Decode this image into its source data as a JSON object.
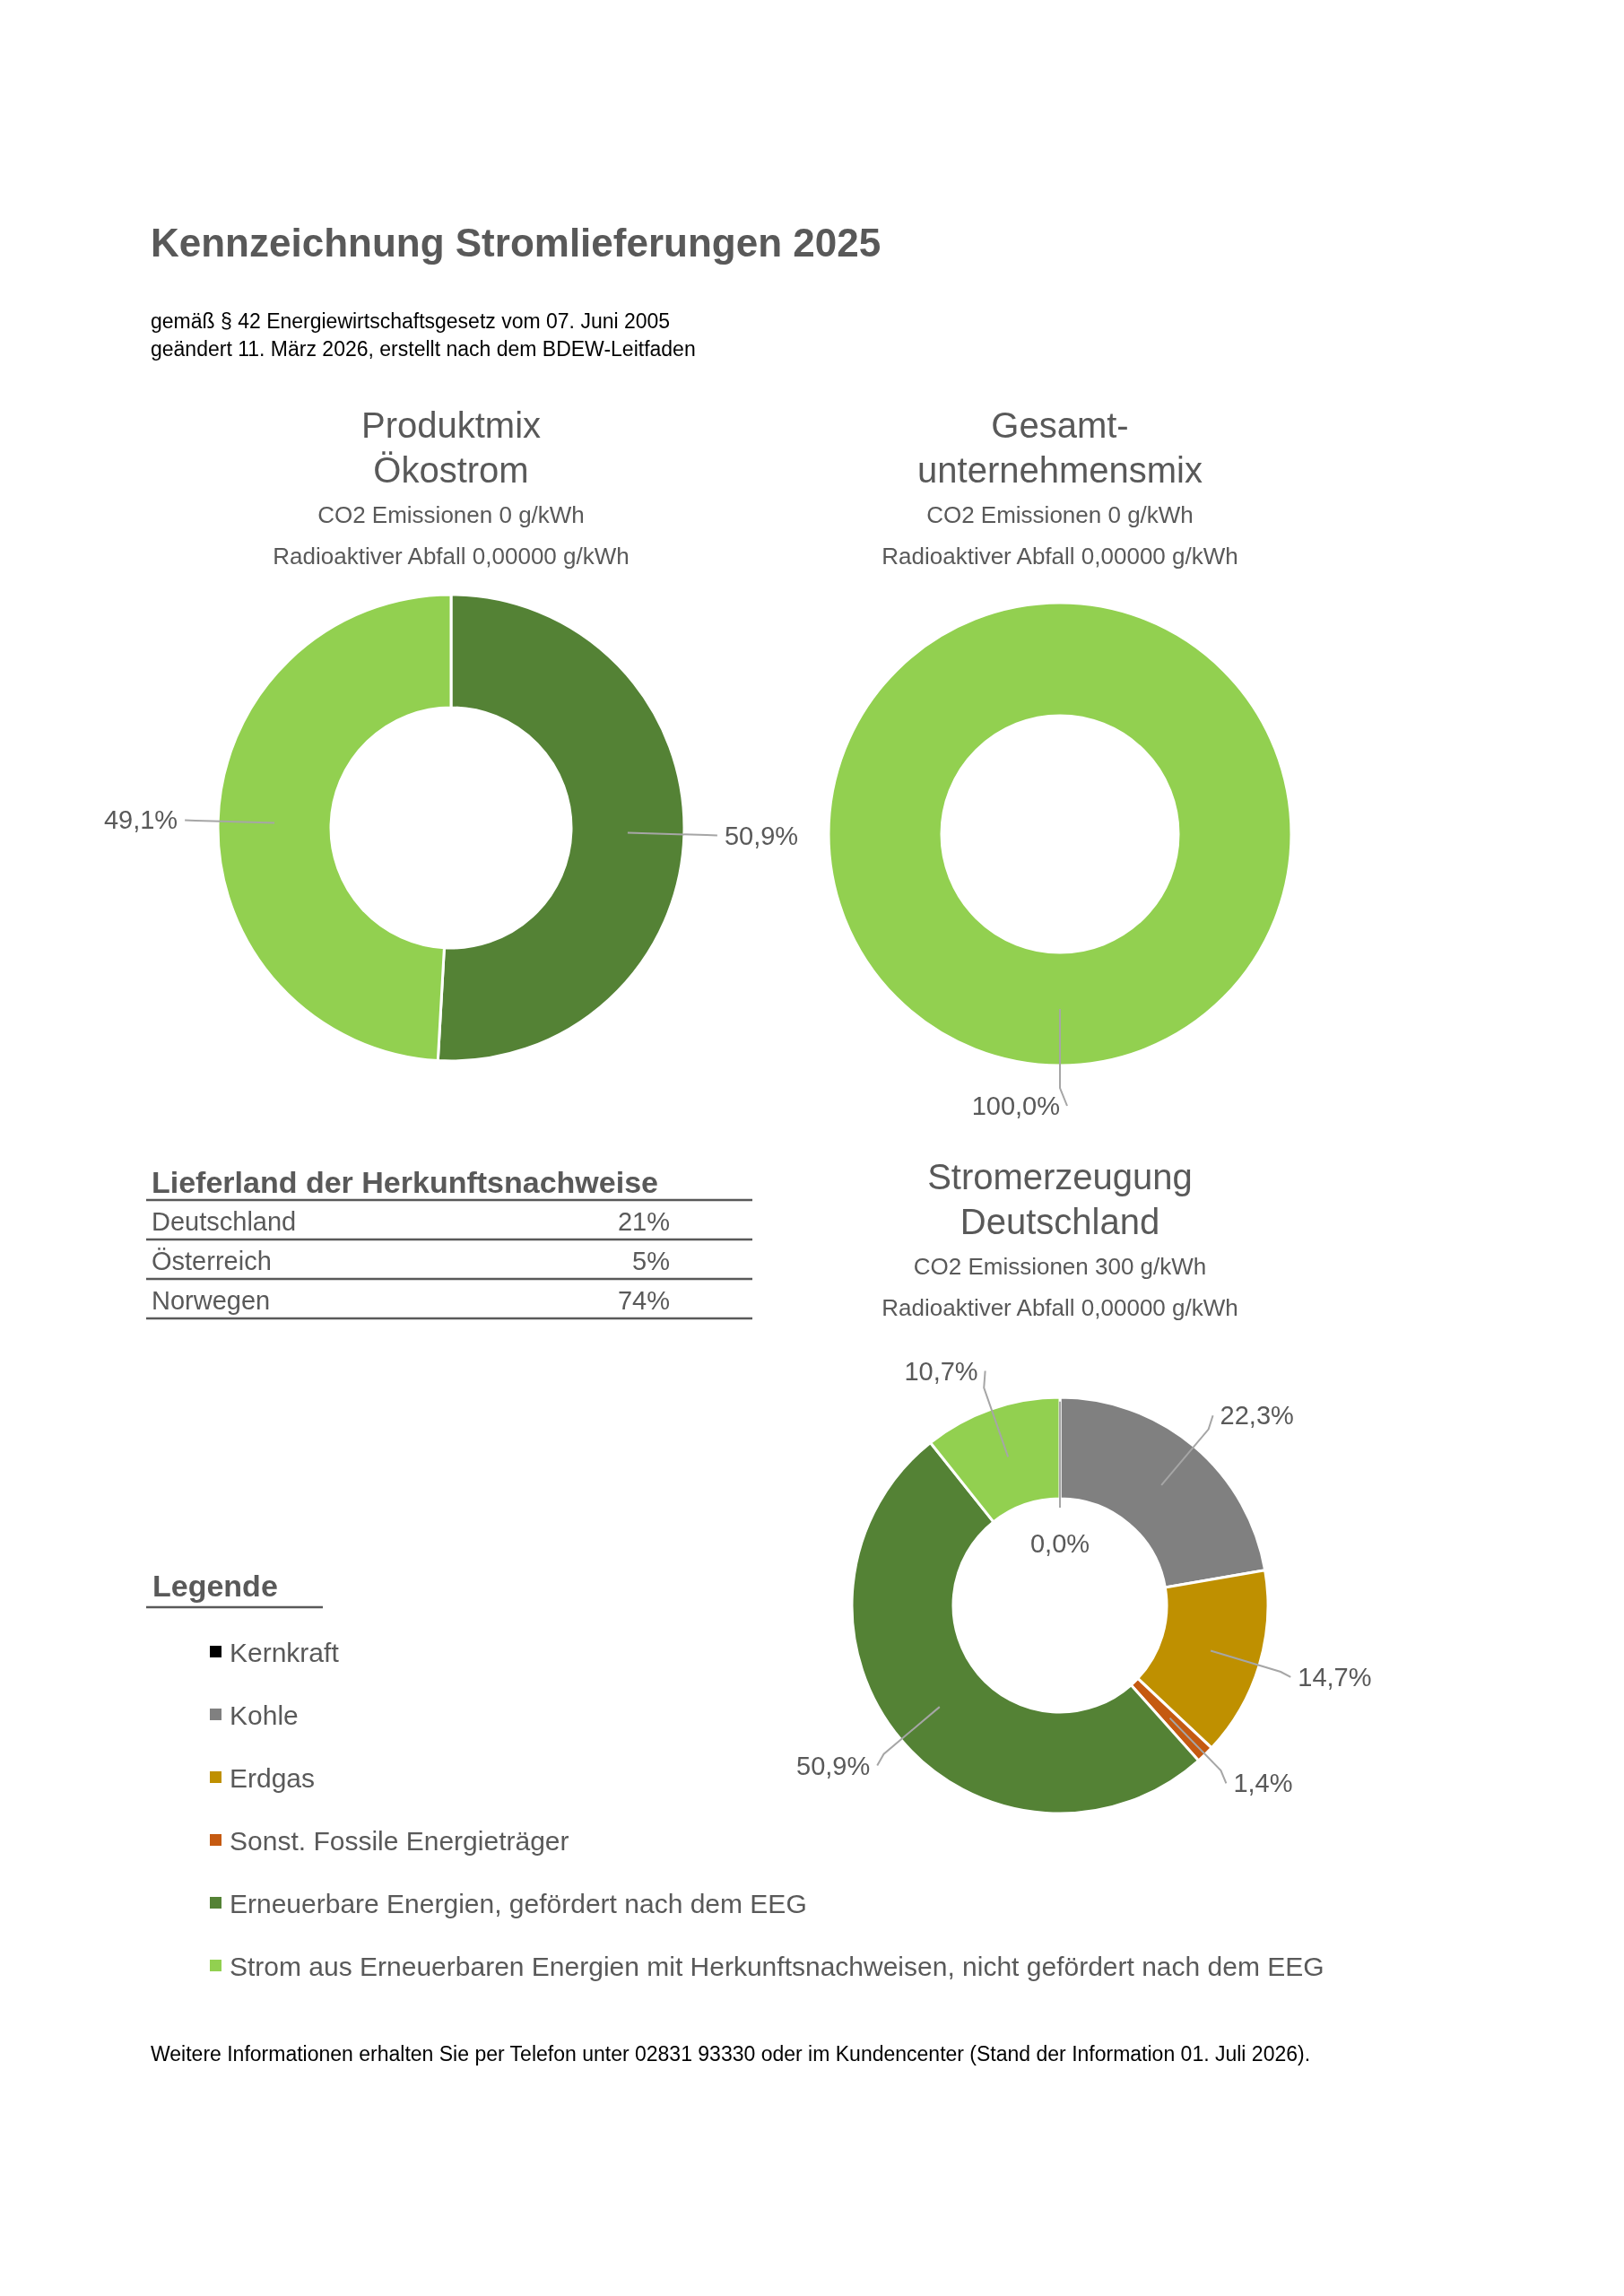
{
  "chart_data": [
    {
      "type": "other",
      "title": "Kennzeichnung Stromlieferungen 2025",
      "subtitle": "gemäß § 42 Energiewirtschaftsgesetz vom 07. Juni 2005\ngeändert 11. März 2026, erstellt nach dem BDEW-Leitfaden",
      "annotations": [
        "Weitere Informationen erhalten Sie per Telefon unter 02831 93330 oder im Kundencenter (Stand der Information 01. Juli 2026)."
      ]
    },
    {
      "type": "donut",
      "title": "Produktmix\nÖkostrom",
      "subtitle": "CO2 Emissionen 0 g/kWh\nRadioaktiver Abfall 0,00000 g/kWh",
      "categories": [
        null,
        null,
        null,
        null,
        null,
        null
      ],
      "values": [
        0,
        0,
        0,
        0,
        50.9,
        49.1
      ],
      "colors": [
        "#000000",
        "#808080",
        "#bf9000",
        "#c55a11",
        "#548235",
        "#92d050"
      ],
      "value_labels": [
        null,
        null,
        null,
        null,
        "50,9%",
        "49,1%"
      ]
    },
    {
      "type": "donut",
      "title": "Gesamt-\nunternehmensmix",
      "subtitle": "CO2 Emissionen 0 g/kWh\nRadioaktiver Abfall 0,00000 g/kWh",
      "categories": [
        null,
        null,
        null,
        null,
        null,
        null
      ],
      "values": [
        0,
        0,
        0,
        0,
        0,
        100
      ],
      "colors": [
        "#000000",
        "#808080",
        "#bf9000",
        "#c55a11",
        "#548235",
        "#92d050"
      ],
      "value_labels": [
        null,
        null,
        null,
        null,
        null,
        "100,0%"
      ]
    },
    {
      "type": "other",
      "title": "Lieferland der Herkunftsnachweise",
      "categories": [
        "Deutschland",
        "Österreich",
        "Norwegen"
      ],
      "value_labels": [
        "21%",
        "5%",
        "74%"
      ]
    },
    {
      "type": "donut",
      "title": "Stromerzeugung\nDeutschland",
      "subtitle": "CO2 Emissionen 300 g/kWh\nRadioaktiver Abfall 0,00000 g/kWh",
      "categories": [
        "Kernkraft",
        "Kohle",
        "Erdgas",
        "Sonst. Fossile Energieträger",
        "Erneuerbare Energien, gefördert nach dem EEG",
        "Strom aus Erneuerbaren Energien mit Herkunftsnachweisen, nicht gefördert nach dem EEG"
      ],
      "values": [
        0,
        22.3,
        14.7,
        1.4,
        50.9,
        10.7
      ],
      "colors": [
        "#000000",
        "#808080",
        "#bf9000",
        "#c55a11",
        "#548235",
        "#92d050"
      ],
      "value_labels": [
        "0,0%",
        "22,3%",
        "14,7%",
        "1,4%",
        "50,9%",
        "10,7%"
      ],
      "legend": "left",
      "legend_title": "Legende"
    }
  ]
}
